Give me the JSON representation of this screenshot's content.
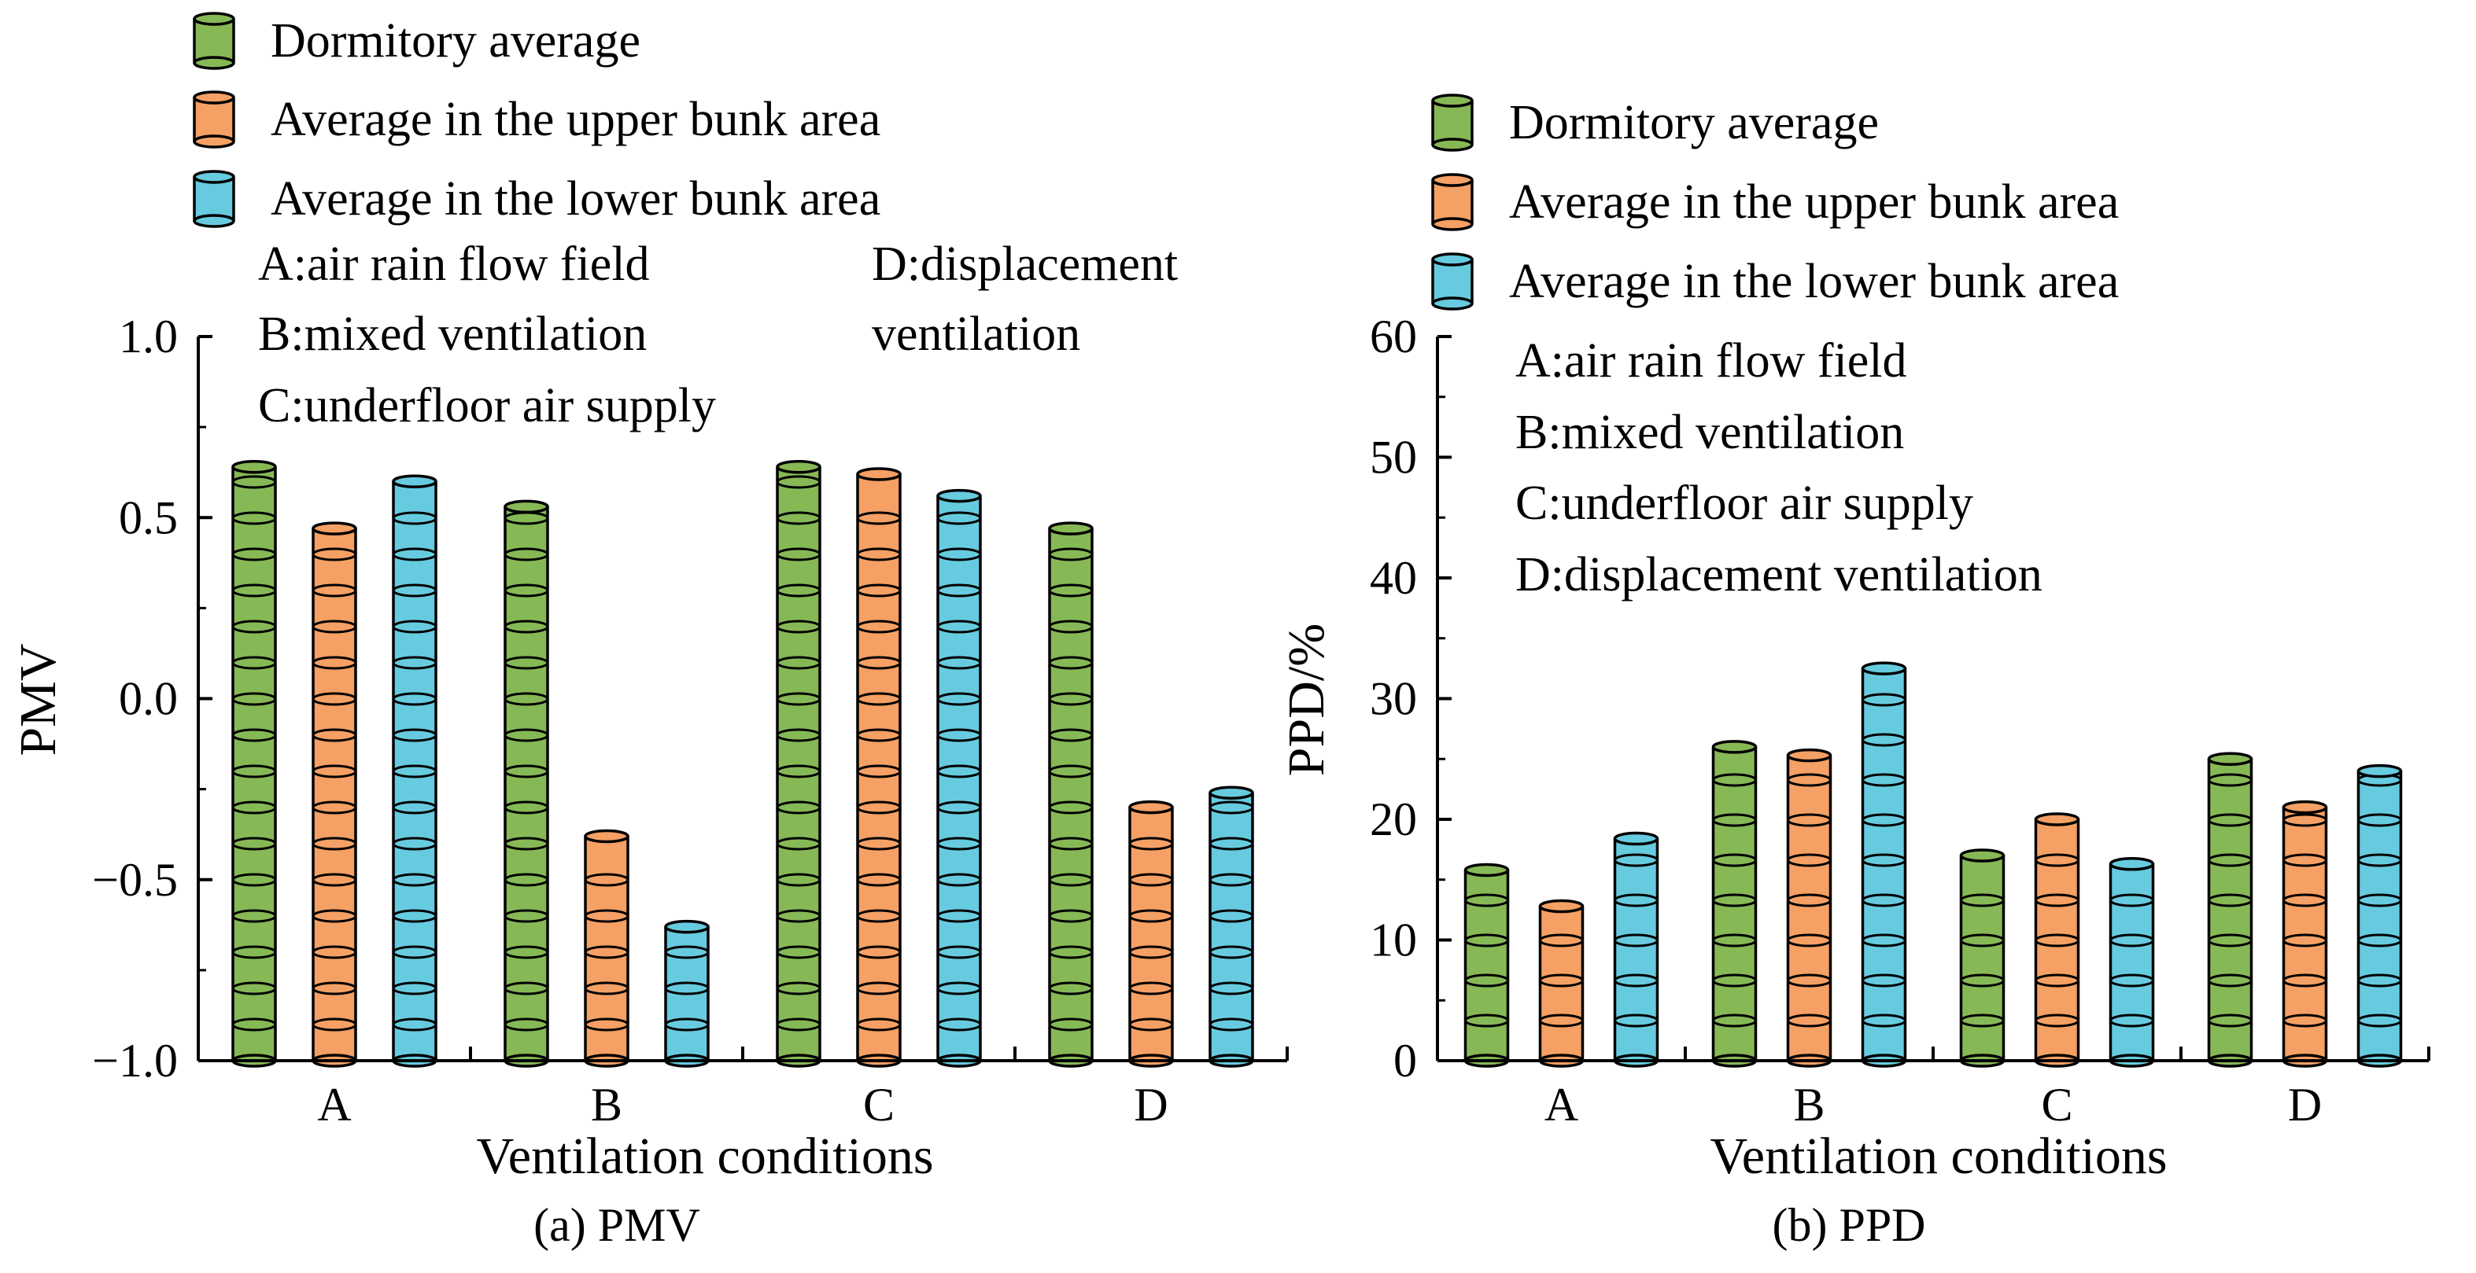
{
  "colors": {
    "series": [
      "#87b856",
      "#f5a064",
      "#67cbe0"
    ],
    "axis": "#000000"
  },
  "chart_data": [
    {
      "type": "bar",
      "subtype": "cylinder-bar",
      "caption": "(a) PMV",
      "xlabel": "Ventilation conditions",
      "ylabel": "PMV",
      "ylim": [
        -1.0,
        1.0
      ],
      "yticks": [
        "1.0",
        "0.5",
        "0.0",
        "−0.5",
        "−1.0"
      ],
      "yticks_values": [
        1.0,
        0.5,
        0.0,
        -0.5,
        -1.0
      ],
      "categories": [
        "A",
        "B",
        "C",
        "D"
      ],
      "series": [
        {
          "name": "Dormitory average",
          "values": [
            0.64,
            0.53,
            0.64,
            0.47
          ]
        },
        {
          "name": "Average in the upper bunk area",
          "values": [
            0.47,
            -0.38,
            0.62,
            -0.3
          ]
        },
        {
          "name": "Average in the lower bunk area",
          "values": [
            0.6,
            -0.63,
            0.56,
            -0.26
          ]
        }
      ],
      "legend": [
        "Dormitory average",
        "Average in the upper bunk area",
        "Average in the lower bunk area"
      ],
      "notes_left": [
        "A:air rain flow field",
        "B:mixed ventilation",
        "C:underfloor air supply"
      ],
      "notes_right": [
        "D:displacement",
        "ventilation"
      ]
    },
    {
      "type": "bar",
      "subtype": "cylinder-bar",
      "caption": "(b) PPD",
      "xlabel": "Ventilation conditions",
      "ylabel": "PPD/%",
      "ylim": [
        0,
        60
      ],
      "yticks": [
        "60",
        "50",
        "40",
        "30",
        "20",
        "10",
        "0"
      ],
      "yticks_values": [
        60,
        50,
        40,
        30,
        20,
        10,
        0
      ],
      "categories": [
        "A",
        "B",
        "C",
        "D"
      ],
      "series": [
        {
          "name": "Dormitory average",
          "values": [
            15.8,
            26.0,
            17.0,
            25.0
          ]
        },
        {
          "name": "Average in the upper bunk area",
          "values": [
            12.8,
            25.3,
            20.0,
            21.0
          ]
        },
        {
          "name": "Average in the lower bunk area",
          "values": [
            18.4,
            32.5,
            16.3,
            24.0
          ]
        }
      ],
      "legend": [
        "Dormitory average",
        "Average in the upper bunk area",
        "Average in the lower bunk area"
      ],
      "notes": [
        "A:air rain flow field",
        "B:mixed ventilation",
        "C:underfloor air supply",
        "D:displacement ventilation"
      ]
    }
  ]
}
